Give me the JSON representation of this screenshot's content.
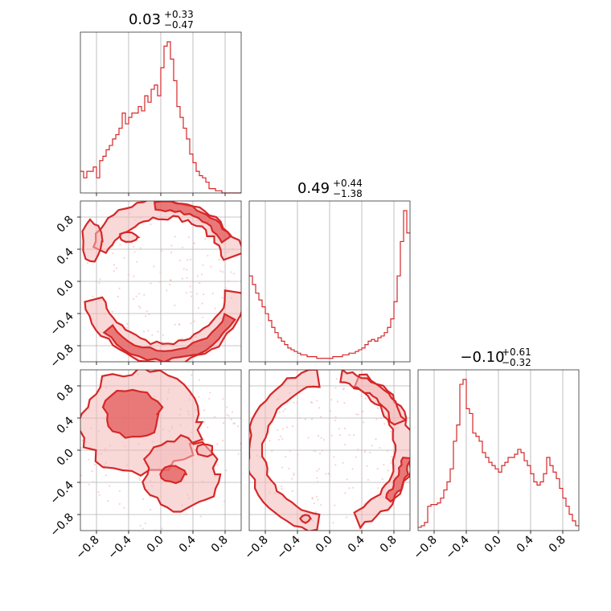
{
  "chart_data": {
    "type": "corner",
    "color": "#d62728",
    "parameters": [
      {
        "title_value": "0.03",
        "err_plus": "+0.33",
        "err_minus": "−0.47"
      },
      {
        "title_value": "0.49",
        "err_plus": "+0.44",
        "err_minus": "−1.38"
      },
      {
        "title_value": "−0.10",
        "err_plus": "+0.61",
        "err_minus": "−0.32"
      }
    ],
    "axis_range": [
      -1.0,
      1.0
    ],
    "ticks": [
      -0.8,
      -0.4,
      0.0,
      0.4,
      0.8
    ],
    "tick_labels": [
      "−0.8",
      "−0.4",
      "0.0",
      "0.4",
      "0.8"
    ],
    "grid": true,
    "histograms": [
      {
        "param": 0,
        "bin_edges_start": -1.0,
        "bin_width": 0.04,
        "counts": [
          0.1,
          0.07,
          0.1,
          0.1,
          0.12,
          0.07,
          0.15,
          0.17,
          0.2,
          0.22,
          0.25,
          0.27,
          0.3,
          0.37,
          0.32,
          0.35,
          0.37,
          0.37,
          0.4,
          0.38,
          0.45,
          0.42,
          0.48,
          0.5,
          0.45,
          0.58,
          0.68,
          0.7,
          0.62,
          0.52,
          0.4,
          0.35,
          0.3,
          0.25,
          0.18,
          0.14,
          0.1,
          0.08,
          0.07,
          0.05,
          0.02,
          0.02,
          0.01,
          0.01,
          0.0,
          0.0,
          0.0,
          0.0,
          0.0,
          0.0
        ]
      },
      {
        "param": 1,
        "bin_edges_start": -1.0,
        "bin_width": 0.04,
        "counts": [
          0.5,
          0.45,
          0.4,
          0.36,
          0.32,
          0.28,
          0.24,
          0.2,
          0.17,
          0.14,
          0.12,
          0.1,
          0.08,
          0.07,
          0.06,
          0.05,
          0.04,
          0.04,
          0.03,
          0.03,
          0.03,
          0.02,
          0.02,
          0.02,
          0.02,
          0.02,
          0.03,
          0.03,
          0.03,
          0.04,
          0.04,
          0.05,
          0.05,
          0.06,
          0.07,
          0.08,
          0.1,
          0.12,
          0.13,
          0.12,
          0.14,
          0.15,
          0.17,
          0.2,
          0.25,
          0.35,
          0.5,
          0.7,
          0.88,
          0.75
        ]
      },
      {
        "param": 2,
        "bin_edges_start": -1.0,
        "bin_width": 0.04,
        "counts": [
          0.02,
          0.03,
          0.05,
          0.15,
          0.16,
          0.16,
          0.17,
          0.2,
          0.25,
          0.3,
          0.38,
          0.55,
          0.65,
          0.9,
          0.93,
          0.75,
          0.72,
          0.6,
          0.58,
          0.55,
          0.48,
          0.45,
          0.42,
          0.4,
          0.38,
          0.36,
          0.4,
          0.42,
          0.45,
          0.45,
          0.47,
          0.5,
          0.48,
          0.43,
          0.4,
          0.35,
          0.3,
          0.28,
          0.3,
          0.35,
          0.45,
          0.4,
          0.36,
          0.32,
          0.26,
          0.2,
          0.15,
          0.1,
          0.06,
          0.03
        ]
      }
    ],
    "contours": [
      {
        "x_param": 0,
        "y_param": 1,
        "shape": "upper-and-lower-arcs"
      },
      {
        "x_param": 0,
        "y_param": 2,
        "shape": "upper-left-blob"
      },
      {
        "x_param": 1,
        "y_param": 2,
        "shape": "ring"
      }
    ]
  }
}
